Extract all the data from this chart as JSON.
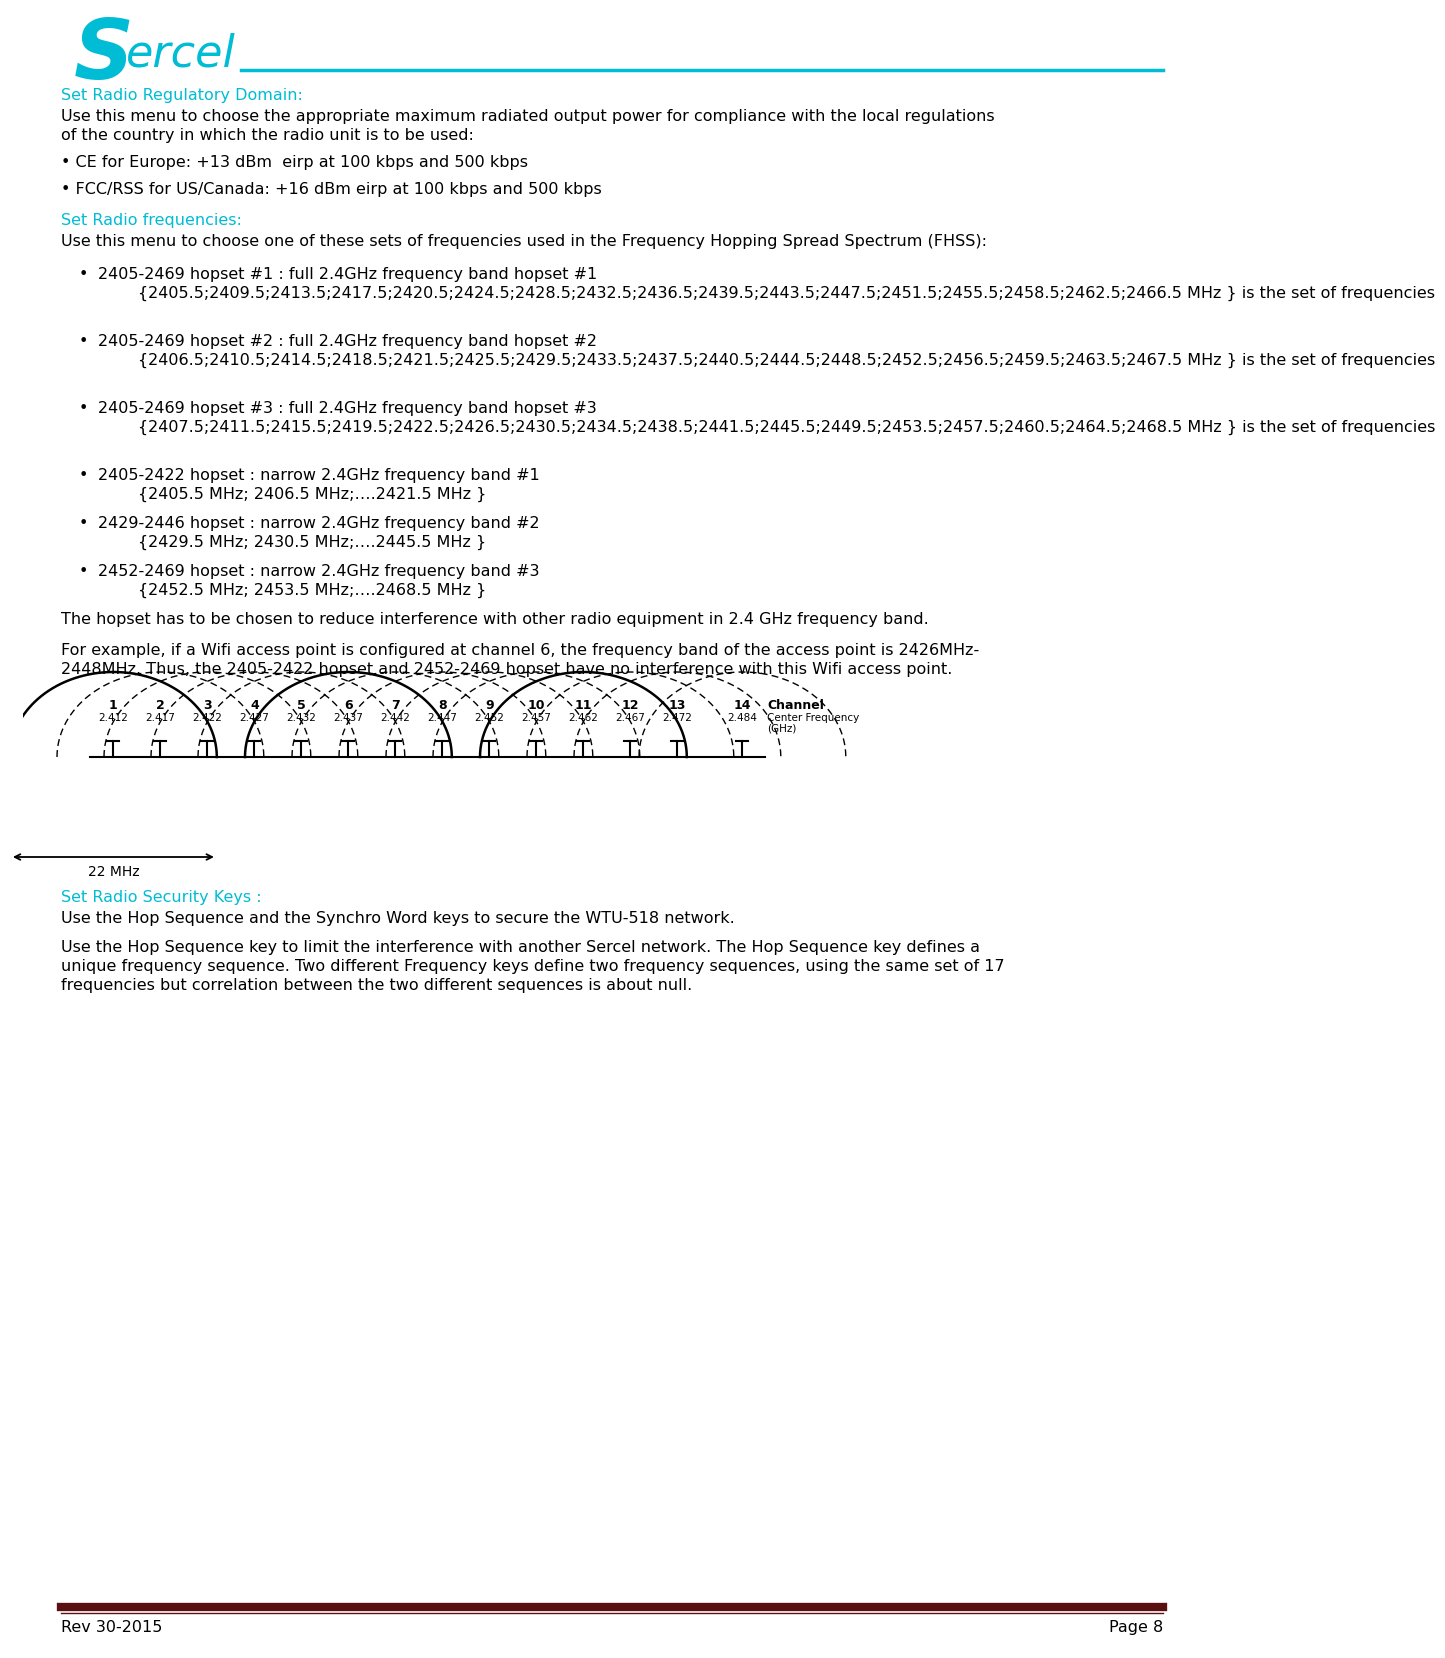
{
  "title_color": "#00bcd4",
  "text_color": "#000000",
  "header_line_color": "#00bcd4",
  "footer_line_color": "#5a1010",
  "footer_text": "Rev 30-2015",
  "footer_page": "Page 8",
  "section1_title": "Set Radio Regulatory Domain:",
  "section1_body_l1": "Use this menu to choose the appropriate maximum radiated output power for compliance with the local regulations",
  "section1_body_l2": "of the country in which the radio unit is to be used:",
  "bullet1": "• CE for Europe: +13 dBm  eirp at 100 kbps and 500 kbps",
  "bullet2": "• FCC/RSS for US/Canada: +16 dBm eirp at 100 kbps and 500 kbps",
  "section2_title": "Set Radio frequencies:",
  "section2_body": "Use this menu to choose one of these sets of frequencies used in the Frequency Hopping Spread Spectrum (FHSS):",
  "sub_bullets": [
    {
      "title": "2405-2469 hopset #1 : full 2.4GHz frequency band hopset #1",
      "body_l1": "{2405.5;2409.5;2413.5;2417.5;2420.5;2424.5;2428.5;2432.5;2436.5;2439.5;2443.5;2447.5;2451.5;2455.5;2458.5;2462.5;2466.5 MHz } is the set of frequencies",
      "body_l2": ""
    },
    {
      "title": "2405-2469 hopset #2 : full 2.4GHz frequency band hopset #2",
      "body_l1": "{2406.5;2410.5;2414.5;2418.5;2421.5;2425.5;2429.5;2433.5;2437.5;2440.5;2444.5;2448.5;2452.5;2456.5;2459.5;2463.5;2467.5 MHz } is the set of frequencies",
      "body_l2": ""
    },
    {
      "title": "2405-2469 hopset #3 : full 2.4GHz frequency band hopset #3",
      "body_l1": "{2407.5;2411.5;2415.5;2419.5;2422.5;2426.5;2430.5;2434.5;2438.5;2441.5;2445.5;2449.5;2453.5;2457.5;2460.5;2464.5;2468.5 MHz } is the set of frequencies",
      "body_l2": ""
    },
    {
      "title": "2405-2422 hopset : narrow 2.4GHz frequency band #1",
      "body_l1": "{2405.5 MHz; 2406.5 MHz;….2421.5 MHz }",
      "body_l2": ""
    },
    {
      "title": "2429-2446 hopset : narrow 2.4GHz frequency band #2",
      "body_l1": "{2429.5 MHz; 2430.5 MHz;….2445.5 MHz }",
      "body_l2": ""
    },
    {
      "title": "2452-2469 hopset : narrow 2.4GHz frequency band #3",
      "body_l1": "{2452.5 MHz; 2453.5 MHz;….2468.5 MHz }",
      "body_l2": ""
    }
  ],
  "para1": "The hopset has to be chosen to reduce interference with other radio equipment in 2.4 GHz frequency band.",
  "para2_l1": "For example, if a Wifi access point is configured at channel 6, the frequency band of the access point is 2426MHz-",
  "para2_l2": "2448MHz. Thus, the 2405-2422 hopset and 2452-2469 hopset have no interference with this Wifi access point.",
  "section3_title": "Set Radio Security Keys :",
  "section3_body1": "Use the Hop Sequence and the Synchro Word keys to secure the WTU-518 network.",
  "section3_body2_l1": "Use the Hop Sequence key to limit the interference with another Sercel network. The Hop Sequence key defines a",
  "section3_body2_l2": "unique frequency sequence. Two different Frequency keys define two frequency sequences, using the same set of 17",
  "section3_body2_l3": "frequencies but correlation between the two different sequences is about null.",
  "mhz22_label": "22 MHz",
  "channel_label": "Channel",
  "freq_label1": "Center Frequency",
  "freq_label2": "(GHz)",
  "freq_labels": [
    "2.412",
    "2.417",
    "2.422",
    "2.427",
    "2.432",
    "2.437",
    "2.442",
    "2.447",
    "2.452",
    "2.457",
    "2.462",
    "2.467",
    "2.472",
    "2.484"
  ],
  "ch_labels": [
    "1",
    "2",
    "3",
    "4",
    "5",
    "6",
    "7",
    "8",
    "9",
    "10",
    "11",
    "12",
    "13",
    "14"
  ]
}
